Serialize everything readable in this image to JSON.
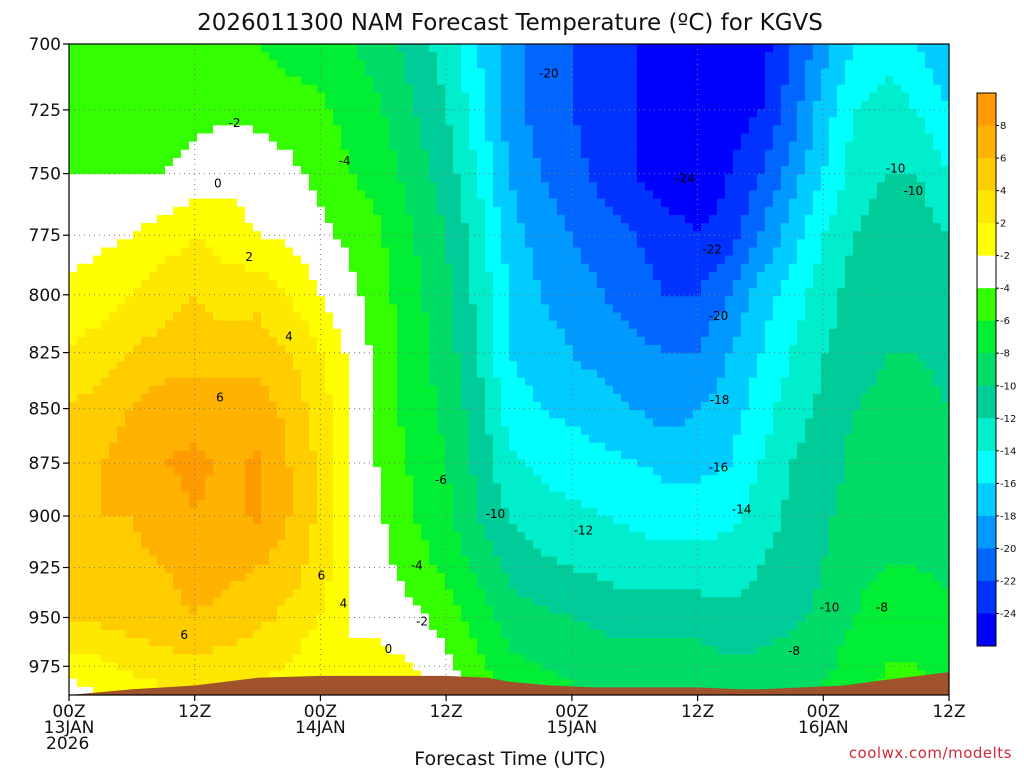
{
  "chart_data": {
    "type": "heatmap",
    "title": "2026011300 NAM Forecast Temperature (ºC) for KGVS",
    "xlabel": "Forecast Time (UTC)",
    "ylabel": "",
    "x_hours": [
      0,
      12,
      24,
      36,
      48,
      60,
      72,
      84
    ],
    "x_tick_labels": [
      [
        "00Z",
        "13JAN",
        "2026"
      ],
      [
        "12Z"
      ],
      [
        "00Z",
        "14JAN"
      ],
      [
        "12Z"
      ],
      [
        "00Z",
        "15JAN"
      ],
      [
        "12Z"
      ],
      [
        "00Z",
        "16JAN"
      ],
      [
        "12Z"
      ]
    ],
    "y_levels": [
      700,
      725,
      750,
      775,
      800,
      825,
      850,
      875,
      900,
      925,
      950,
      975
    ],
    "y_tick_labels": [
      "700",
      "725",
      "750",
      "775",
      "800",
      "825",
      "850",
      "875",
      "900",
      "925",
      "950",
      "975"
    ],
    "xlim": [
      0,
      84
    ],
    "ylim_hpa": [
      700,
      990
    ],
    "y_scale": "pressure (reversed)",
    "grid": true,
    "colorbar": {
      "labels": [
        "8",
        "6",
        "4",
        "2",
        "-2",
        "-4",
        "-6",
        "-8",
        "-10",
        "-12",
        "-14",
        "-16",
        "-18",
        "-20",
        "-22",
        "-24"
      ],
      "colors": [
        "#ff9a00",
        "#ffb200",
        "#ffcc00",
        "#ffe800",
        "#ffff00",
        "#ffffff",
        "#33ff00",
        "#00ee33",
        "#00dd66",
        "#00cc99",
        "#00eecc",
        "#00ffff",
        "#00ccff",
        "#0099ff",
        "#0066ff",
        "#0033ff",
        "#0000ff"
      ]
    },
    "field_source": "estimated temperature (ºC) on a regular grid read from the picture",
    "grid_pressures": [
      700,
      725,
      750,
      775,
      800,
      825,
      850,
      875,
      900,
      925,
      950,
      975,
      990
    ],
    "grid_hours": [
      0,
      3,
      6,
      9,
      12,
      15,
      18,
      21,
      24,
      27,
      30,
      33,
      36,
      39,
      42,
      45,
      48,
      51,
      54,
      57,
      60,
      63,
      66,
      69,
      72,
      75,
      78,
      81,
      84
    ],
    "grid_values": [
      [
        -4,
        -4,
        -4,
        -4,
        -4,
        -4,
        -4,
        -5,
        -5,
        -6,
        -7,
        -9,
        -11,
        -14,
        -17,
        -19,
        -20,
        -21,
        -22,
        -23,
        -25,
        -24,
        -23,
        -20,
        -17,
        -14,
        -13,
        -14,
        -16
      ],
      [
        -3,
        -3,
        -3,
        -2.5,
        -2.5,
        -2.5,
        -2.5,
        -3,
        -3.5,
        -5,
        -6,
        -8,
        -10,
        -13,
        -17,
        -19,
        -20,
        -21,
        -22,
        -23,
        -24,
        -23,
        -22,
        -19,
        -15,
        -12,
        -11,
        -12,
        -14
      ],
      [
        -2,
        -2,
        -2,
        -2,
        -1.5,
        -0.5,
        -1,
        -1.5,
        -2.5,
        -4,
        -5,
        -7,
        -9,
        -12,
        -16,
        -18,
        -19,
        -21,
        -22,
        -23,
        -24,
        -22,
        -20,
        -17,
        -14,
        -11,
        -10,
        -10,
        -12
      ],
      [
        -1,
        -0.5,
        0,
        1,
        2,
        1,
        0,
        -0.5,
        -1.5,
        -2.5,
        -4,
        -6,
        -8,
        -11,
        -15,
        -17,
        -18,
        -19,
        -20,
        -21,
        -22,
        -21,
        -18,
        -15,
        -12,
        -10,
        -9,
        -9,
        -10
      ],
      [
        0.5,
        1,
        2,
        3,
        4,
        3,
        3.5,
        2,
        0,
        -1.5,
        -3.5,
        -5.5,
        -7.5,
        -10.5,
        -14,
        -16,
        -17,
        -18,
        -19,
        -20,
        -20,
        -18,
        -15,
        -13,
        -11,
        -9,
        -8.5,
        -8.5,
        -9
      ],
      [
        2,
        3,
        4,
        5,
        5,
        5,
        5,
        4,
        2,
        -0.5,
        -3,
        -5,
        -7,
        -10,
        -14,
        -15,
        -16,
        -17,
        -17.5,
        -18,
        -18,
        -16,
        -14,
        -12,
        -10,
        -9,
        -8,
        -8,
        -8.5
      ],
      [
        4,
        5,
        6,
        7,
        7,
        7,
        7,
        5.5,
        3,
        0,
        -3,
        -5,
        -6.5,
        -9,
        -13,
        -14,
        -14.5,
        -15,
        -16,
        -17,
        -16,
        -15,
        -13,
        -11,
        -9.5,
        -8,
        -7.5,
        -7.5,
        -8
      ],
      [
        5,
        6,
        7,
        8,
        8.5,
        7.5,
        8.3,
        6,
        3.5,
        0,
        -2.5,
        -4.5,
        -6,
        -8.5,
        -11.5,
        -12.5,
        -13,
        -13.5,
        -14,
        -14.5,
        -14.5,
        -14,
        -12,
        -10,
        -9,
        -7.5,
        -7,
        -7,
        -7.5
      ],
      [
        5,
        6,
        6,
        7,
        8,
        7.5,
        8.3,
        6,
        3.5,
        0,
        -2,
        -4,
        -5.5,
        -8,
        -10,
        -11,
        -11.5,
        -12,
        -12.5,
        -13,
        -13,
        -12.5,
        -11,
        -9.5,
        -8.5,
        -7,
        -6.5,
        -6.5,
        -7
      ],
      [
        4.5,
        5,
        5.5,
        6,
        6.5,
        6.5,
        6,
        5,
        3,
        0,
        -1.5,
        -3,
        -4.5,
        -6.5,
        -8.5,
        -9.5,
        -10,
        -10.5,
        -11,
        -11,
        -11,
        -11,
        -10,
        -9,
        -8,
        -6.5,
        -6,
        -6,
        -6.5
      ],
      [
        4,
        4.5,
        5,
        5.5,
        6,
        5.5,
        4.5,
        3.5,
        2,
        0,
        -0.5,
        -1.5,
        -3,
        -5,
        -7,
        -7.5,
        -8,
        -8.5,
        -9,
        -9,
        -9,
        -9.5,
        -9,
        -8.5,
        -7.5,
        -6,
        -5,
        -5,
        -5.5
      ],
      [
        1,
        1.5,
        2.5,
        3,
        3.5,
        3,
        2.5,
        2,
        0.5,
        0,
        0.5,
        0,
        -1.5,
        -3.5,
        -5.5,
        -6,
        -6.5,
        -7,
        -7,
        -7,
        -7,
        -7.5,
        -7.5,
        -7,
        -6.5,
        -5,
        -4,
        -4,
        -4.5
      ],
      [
        -1,
        0,
        1,
        1.5,
        2,
        2,
        1.5,
        1,
        0.5,
        0.5,
        1,
        0.5,
        -0.5,
        -2.5,
        -4.5,
        -5,
        -5.5,
        -6,
        -6,
        -6,
        -6,
        -6.5,
        -6.5,
        -6,
        -5.5,
        -4.5,
        -3.5,
        -3.5,
        -4
      ]
    ],
    "contour_labels": [
      {
        "text": "-20",
        "hour": 45.8,
        "p": 711
      },
      {
        "text": "-2",
        "hour": 15.8,
        "p": 730
      },
      {
        "text": "-4",
        "hour": 26.3,
        "p": 745
      },
      {
        "text": "-24",
        "hour": 58.8,
        "p": 752
      },
      {
        "text": "-10",
        "hour": 78.9,
        "p": 748
      },
      {
        "text": "-10",
        "hour": 80.6,
        "p": 757
      },
      {
        "text": "0",
        "hour": 14.2,
        "p": 754
      },
      {
        "text": "-22",
        "hour": 61.4,
        "p": 781
      },
      {
        "text": "2",
        "hour": 17.2,
        "p": 784
      },
      {
        "text": "-20",
        "hour": 62.0,
        "p": 809
      },
      {
        "text": "4",
        "hour": 21.0,
        "p": 818
      },
      {
        "text": "6",
        "hour": 14.4,
        "p": 845
      },
      {
        "text": "-18",
        "hour": 62.1,
        "p": 846
      },
      {
        "text": "-16",
        "hour": 62.0,
        "p": 877
      },
      {
        "text": "-6",
        "hour": 35.5,
        "p": 883
      },
      {
        "text": "-14",
        "hour": 64.2,
        "p": 897
      },
      {
        "text": "-10",
        "hour": 40.7,
        "p": 899
      },
      {
        "text": "-12",
        "hour": 49.1,
        "p": 907
      },
      {
        "text": "-4",
        "hour": 33.2,
        "p": 924
      },
      {
        "text": "6",
        "hour": 24.1,
        "p": 929
      },
      {
        "text": "-2",
        "hour": 33.7,
        "p": 952
      },
      {
        "text": "4",
        "hour": 26.2,
        "p": 943
      },
      {
        "text": "-10",
        "hour": 72.6,
        "p": 945
      },
      {
        "text": "-8",
        "hour": 77.6,
        "p": 945
      },
      {
        "text": "6",
        "hour": 11.0,
        "p": 959
      },
      {
        "text": "-8",
        "hour": 69.2,
        "p": 967
      },
      {
        "text": "0",
        "hour": 30.5,
        "p": 966
      }
    ],
    "terrain_hours": [
      0,
      6,
      12,
      18,
      24,
      30,
      36,
      40,
      42,
      46,
      50,
      54,
      60,
      64,
      66,
      70,
      74,
      78,
      84
    ],
    "terrain_p": [
      990,
      987,
      985,
      981,
      980,
      980,
      980,
      981,
      983,
      985,
      986,
      986,
      986,
      987,
      987,
      986,
      985,
      982,
      978
    ],
    "source_note": "coolwx.com/modelts"
  }
}
